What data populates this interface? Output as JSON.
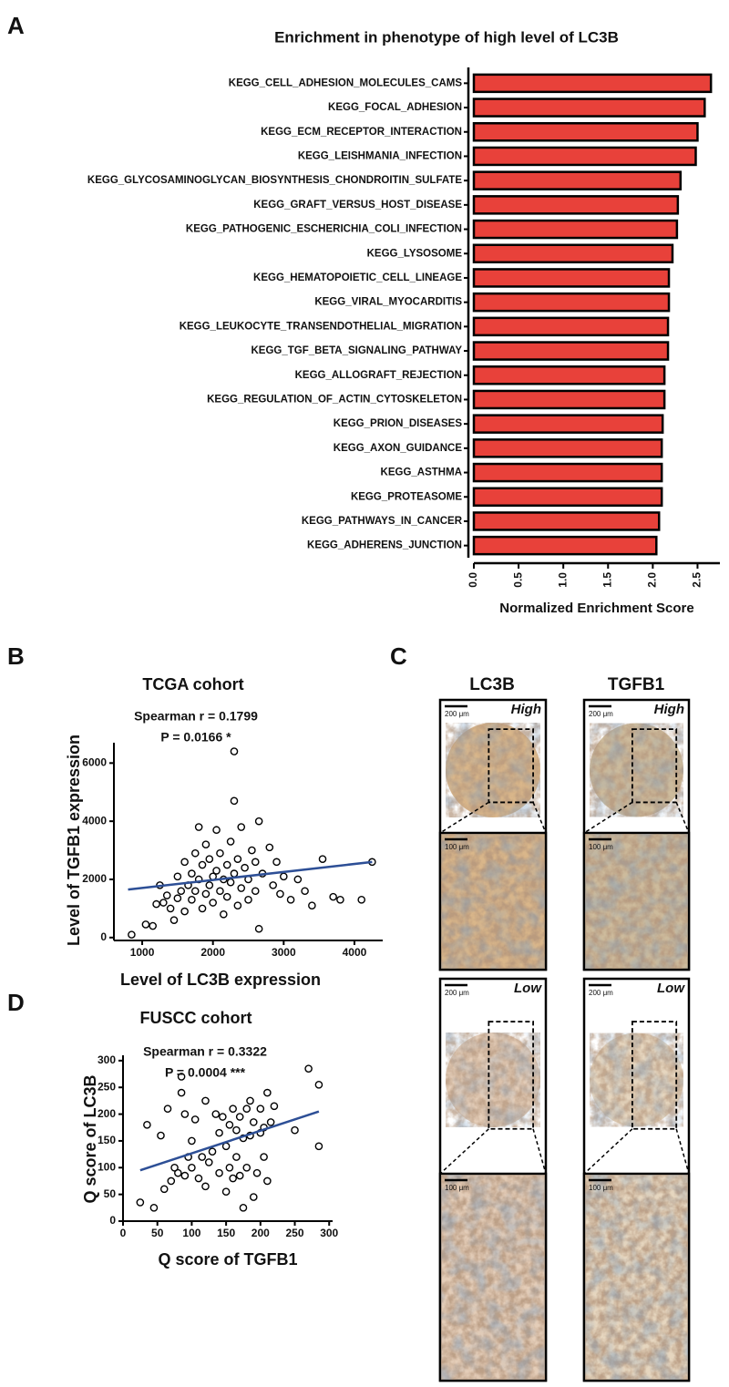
{
  "chart_data": [
    {
      "type": "bar",
      "panel": "A",
      "title": "Enrichment in phenotype of high level of LC3B",
      "orientation": "horizontal",
      "categories": [
        "KEGG_CELL_ADHESION_MOLECULES_CAMS",
        "KEGG_FOCAL_ADHESION",
        "KEGG_ECM_RECEPTOR_INTERACTION",
        "KEGG_LEISHMANIA_INFECTION",
        "KEGG_GLYCOSAMINOGLYCAN_BIOSYNTHESIS_CHONDROITIN_SULFATE",
        "KEGG_GRAFT_VERSUS_HOST_DISEASE",
        "KEGG_PATHOGENIC_ESCHERICHIA_COLI_INFECTION",
        "KEGG_LYSOSOME",
        "KEGG_HEMATOPOIETIC_CELL_LINEAGE",
        "KEGG_VIRAL_MYOCARDITIS",
        "KEGG_LEUKOCYTE_TRANSENDOTHELIAL_MIGRATION",
        "KEGG_TGF_BETA_SIGNALING_PATHWAY",
        "KEGG_ALLOGRAFT_REJECTION",
        "KEGG_REGULATION_OF_ACTIN_CYTOSKELETON",
        "KEGG_PRION_DISEASES",
        "KEGG_AXON_GUIDANCE",
        "KEGG_ASTHMA",
        "KEGG_PROTEASOME",
        "KEGG_PATHWAYS_IN_CANCER",
        "KEGG_ADHERENS_JUNCTION"
      ],
      "values": [
        2.65,
        2.58,
        2.5,
        2.48,
        2.31,
        2.28,
        2.27,
        2.22,
        2.18,
        2.18,
        2.17,
        2.17,
        2.13,
        2.13,
        2.11,
        2.1,
        2.1,
        2.1,
        2.07,
        2.04
      ],
      "color": "#e8413a",
      "xlabel": "Normalized Enrichment Score",
      "xlim": [
        0,
        2.75
      ],
      "xticks": [
        {
          "value": 0,
          "label": "0.0"
        },
        0.5,
        {
          "value": 1,
          "label": "1.0"
        },
        1.5,
        {
          "value": 2,
          "label": "2.0"
        },
        2.5
      ]
    },
    {
      "type": "scatter",
      "panel": "B",
      "title": "TCGA cohort",
      "annotations": [
        "Spearman r = 0.1799",
        "P = 0.0166 *"
      ],
      "xlabel": "Level of LC3B expression",
      "ylabel": "Level of TGFB1 expression",
      "x": [
        850,
        1050,
        1150,
        1200,
        1250,
        1300,
        1350,
        1400,
        1450,
        1500,
        1500,
        1550,
        1600,
        1600,
        1650,
        1700,
        1700,
        1750,
        1750,
        1800,
        1800,
        1850,
        1850,
        1900,
        1900,
        1950,
        1950,
        2000,
        2000,
        2050,
        2050,
        2100,
        2100,
        2150,
        2150,
        2200,
        2200,
        2250,
        2250,
        2300,
        2300,
        2300,
        2350,
        2350,
        2400,
        2400,
        2450,
        2500,
        2500,
        2550,
        2600,
        2600,
        2650,
        2650,
        2700,
        2800,
        2850,
        2900,
        2950,
        3000,
        3100,
        3200,
        3300,
        3400,
        3550,
        3700,
        3800,
        4100,
        4250
      ],
      "values": [
        100,
        450,
        400,
        1150,
        1800,
        1200,
        1450,
        1000,
        600,
        1350,
        2100,
        1600,
        2600,
        900,
        1800,
        2200,
        1300,
        2900,
        1600,
        3800,
        2000,
        1000,
        2500,
        1500,
        3200,
        2700,
        1800,
        2100,
        1200,
        3700,
        2300,
        1600,
        2900,
        800,
        2000,
        2500,
        1400,
        3300,
        1900,
        6400,
        4700,
        2200,
        1100,
        2700,
        1700,
        3800,
        2400,
        2000,
        1300,
        3000,
        2600,
        1600,
        300,
        4000,
        2200,
        3100,
        1800,
        2600,
        1500,
        2100,
        1300,
        2000,
        1600,
        1100,
        2700,
        1400,
        1300,
        1300,
        2600
      ],
      "fit_line": {
        "x": [
          800,
          4250
        ],
        "y": [
          1650,
          2600
        ],
        "color": "#2d4f96"
      },
      "xlim": [
        600,
        4400
      ],
      "ylim": [
        -100,
        6700
      ],
      "xticks": [
        1000,
        2000,
        3000,
        4000
      ],
      "yticks": [
        0,
        2000,
        4000,
        6000
      ]
    },
    {
      "type": "scatter",
      "panel": "D",
      "title": "FUSCC cohort",
      "annotations": [
        "Spearman r = 0.3322",
        "P = 0.0004 ***"
      ],
      "xlabel": "Q score of TGFB1",
      "ylabel": "Q score of LC3B",
      "x": [
        25,
        35,
        45,
        55,
        60,
        65,
        70,
        75,
        80,
        85,
        85,
        90,
        90,
        95,
        100,
        100,
        105,
        110,
        115,
        120,
        120,
        125,
        130,
        135,
        140,
        140,
        145,
        150,
        150,
        155,
        155,
        160,
        160,
        165,
        165,
        170,
        170,
        175,
        175,
        180,
        180,
        185,
        185,
        190,
        190,
        195,
        200,
        200,
        205,
        205,
        210,
        210,
        215,
        220,
        250,
        270,
        285,
        285
      ],
      "values": [
        35,
        180,
        25,
        160,
        60,
        210,
        75,
        100,
        90,
        270,
        240,
        85,
        200,
        120,
        150,
        100,
        190,
        80,
        120,
        225,
        65,
        110,
        130,
        200,
        90,
        165,
        195,
        140,
        55,
        180,
        100,
        210,
        80,
        170,
        120,
        195,
        85,
        155,
        25,
        210,
        100,
        225,
        160,
        185,
        45,
        90,
        210,
        165,
        175,
        120,
        240,
        75,
        185,
        215,
        170,
        285,
        255,
        140
      ],
      "fit_line": {
        "x": [
          25,
          285
        ],
        "y": [
          95,
          205
        ],
        "color": "#2d4f96"
      },
      "xlim": [
        0,
        305
      ],
      "ylim": [
        0,
        310
      ],
      "xticks": [
        0,
        50,
        100,
        150,
        200,
        250,
        300
      ],
      "yticks": [
        0,
        50,
        100,
        150,
        200,
        250,
        300
      ]
    }
  ],
  "panel_c": {
    "panel": "C",
    "columns": [
      "LC3B",
      "TGFB1"
    ],
    "rows": [
      "High",
      "Low"
    ],
    "scale_overview": "200 μm",
    "scale_zoom": "100 μm"
  }
}
